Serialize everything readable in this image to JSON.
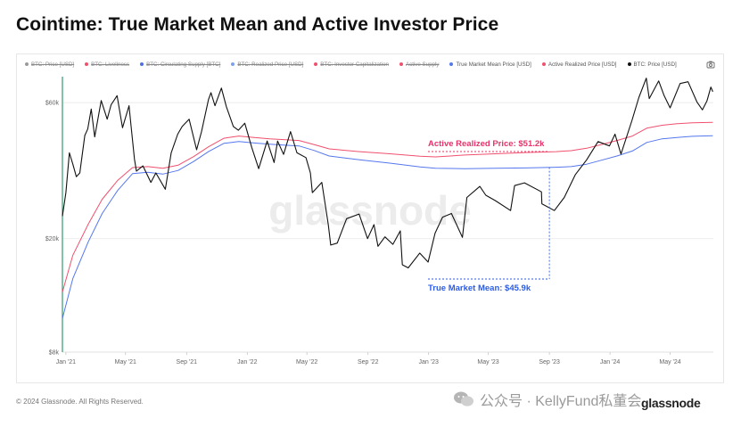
{
  "page": {
    "title": "Cointime: True Market Mean and Active Investor Price",
    "footer": "© 2024 Glassnode. All Rights Reserved.",
    "watermark": "glassnode",
    "wechat_text": "公众号 · KellyFund私董会",
    "brand": "glassnode"
  },
  "legend": [
    {
      "label": "BTC: Price [USD]",
      "color": "#9a9a9a",
      "active": false
    },
    {
      "label": "BTC: Liveliness",
      "color": "#f0506e",
      "active": false
    },
    {
      "label": "BTC: Circulating Supply [BTC]",
      "color": "#4f6fe0",
      "active": false
    },
    {
      "label": "BTC: Realized Price [USD]",
      "color": "#7ea0f0",
      "active": false
    },
    {
      "label": "BTC: Investor Capitalization",
      "color": "#f0506e",
      "active": false
    },
    {
      "label": "Active Supply",
      "color": "#f0506e",
      "active": false
    },
    {
      "label": "True Market Mean Price [USD]",
      "color": "#5577ee",
      "active": true
    },
    {
      "label": "Active Realized Price [USD]",
      "color": "#f0506e",
      "active": true
    },
    {
      "label": "BTC: Price [USD]",
      "color": "#111111",
      "active": true
    }
  ],
  "annotations": {
    "active_realized": "Active Realized Price: $51.2k",
    "true_market_mean": "True Market Mean: $45.9k"
  },
  "icons": {
    "camera": "camera-icon",
    "wechat": "wechat-icon"
  },
  "colors": {
    "price": "#111111",
    "active_realized": "#f0506e",
    "true_market_mean": "#5577ee",
    "grid": "#e6e6e6",
    "annotation_realized": "#e8336a",
    "annotation_mean": "#2b5ce6"
  },
  "chart_data": {
    "type": "line",
    "title": "Cointime: True Market Mean and Active Investor Price",
    "y_scale": "log",
    "ylim": [
      8000,
      74000
    ],
    "xlim": [
      "2020-12-25",
      "2024-07-27"
    ],
    "y_ticks": [
      {
        "value": 8000,
        "label": "$8k"
      },
      {
        "value": 20000,
        "label": "$20k"
      },
      {
        "value": 60000,
        "label": "$60k"
      }
    ],
    "x_ticks": [
      {
        "date": "2021-01-01",
        "label": "Jan '21"
      },
      {
        "date": "2021-05-01",
        "label": "May '21"
      },
      {
        "date": "2021-09-01",
        "label": "Sep '21"
      },
      {
        "date": "2022-01-01",
        "label": "Jan '22"
      },
      {
        "date": "2022-05-01",
        "label": "May '22"
      },
      {
        "date": "2022-09-01",
        "label": "Sep '22"
      },
      {
        "date": "2023-01-01",
        "label": "Jan '23"
      },
      {
        "date": "2023-05-01",
        "label": "May '23"
      },
      {
        "date": "2023-09-01",
        "label": "Sep '23"
      },
      {
        "date": "2024-01-01",
        "label": "Jan '24"
      },
      {
        "date": "2024-05-01",
        "label": "May '24"
      }
    ],
    "grid": true,
    "legend_position": "top",
    "series": [
      {
        "name": "BTC: Price [USD]",
        "color": "#111111",
        "points": [
          [
            "2020-12-25",
            24000
          ],
          [
            "2021-01-01",
            29000
          ],
          [
            "2021-01-08",
            40000
          ],
          [
            "2021-01-15",
            36500
          ],
          [
            "2021-01-22",
            33000
          ],
          [
            "2021-01-29",
            34000
          ],
          [
            "2021-02-08",
            46000
          ],
          [
            "2021-02-14",
            48500
          ],
          [
            "2021-02-21",
            57000
          ],
          [
            "2021-02-28",
            45500
          ],
          [
            "2021-03-13",
            61000
          ],
          [
            "2021-03-25",
            52500
          ],
          [
            "2021-04-02",
            59000
          ],
          [
            "2021-04-14",
            63500
          ],
          [
            "2021-04-25",
            49000
          ],
          [
            "2021-05-08",
            58500
          ],
          [
            "2021-05-12",
            50000
          ],
          [
            "2021-05-19",
            38000
          ],
          [
            "2021-05-23",
            34500
          ],
          [
            "2021-06-05",
            36000
          ],
          [
            "2021-06-21",
            31500
          ],
          [
            "2021-07-01",
            34000
          ],
          [
            "2021-07-20",
            29800
          ],
          [
            "2021-08-01",
            40000
          ],
          [
            "2021-08-14",
            46500
          ],
          [
            "2021-08-23",
            49500
          ],
          [
            "2021-09-06",
            52500
          ],
          [
            "2021-09-21",
            41000
          ],
          [
            "2021-10-01",
            47500
          ],
          [
            "2021-10-15",
            61500
          ],
          [
            "2021-10-20",
            65000
          ],
          [
            "2021-10-28",
            58500
          ],
          [
            "2021-11-10",
            67500
          ],
          [
            "2021-11-20",
            58000
          ],
          [
            "2021-12-04",
            49500
          ],
          [
            "2021-12-14",
            48000
          ],
          [
            "2021-12-27",
            50800
          ],
          [
            "2022-01-10",
            41800
          ],
          [
            "2022-01-24",
            35200
          ],
          [
            "2022-02-10",
            44000
          ],
          [
            "2022-02-24",
            37000
          ],
          [
            "2022-03-03",
            44000
          ],
          [
            "2022-03-15",
            39500
          ],
          [
            "2022-03-29",
            47500
          ],
          [
            "2022-04-11",
            40000
          ],
          [
            "2022-04-29",
            38500
          ],
          [
            "2022-05-08",
            34000
          ],
          [
            "2022-05-12",
            29000
          ],
          [
            "2022-05-31",
            31500
          ],
          [
            "2022-06-13",
            22500
          ],
          [
            "2022-06-18",
            19000
          ],
          [
            "2022-07-01",
            19300
          ],
          [
            "2022-07-20",
            23500
          ],
          [
            "2022-08-14",
            24400
          ],
          [
            "2022-08-31",
            20000
          ],
          [
            "2022-09-13",
            22400
          ],
          [
            "2022-09-21",
            18800
          ],
          [
            "2022-10-05",
            20300
          ],
          [
            "2022-10-21",
            19100
          ],
          [
            "2022-11-05",
            21300
          ],
          [
            "2022-11-09",
            16200
          ],
          [
            "2022-11-21",
            15800
          ],
          [
            "2022-12-14",
            17800
          ],
          [
            "2022-12-31",
            16550
          ],
          [
            "2023-01-14",
            20900
          ],
          [
            "2023-01-29",
            23800
          ],
          [
            "2023-02-16",
            24500
          ],
          [
            "2023-03-10",
            20200
          ],
          [
            "2023-03-19",
            27900
          ],
          [
            "2023-04-14",
            30500
          ],
          [
            "2023-04-26",
            28400
          ],
          [
            "2023-05-15",
            27200
          ],
          [
            "2023-06-15",
            25100
          ],
          [
            "2023-06-23",
            30700
          ],
          [
            "2023-07-13",
            31400
          ],
          [
            "2023-08-16",
            29200
          ],
          [
            "2023-08-17",
            26500
          ],
          [
            "2023-09-11",
            25100
          ],
          [
            "2023-10-01",
            27900
          ],
          [
            "2023-10-23",
            33500
          ],
          [
            "2023-11-15",
            37800
          ],
          [
            "2023-12-08",
            43800
          ],
          [
            "2023-12-31",
            42300
          ],
          [
            "2024-01-11",
            46500
          ],
          [
            "2024-01-23",
            39600
          ],
          [
            "2024-02-14",
            51800
          ],
          [
            "2024-02-28",
            62500
          ],
          [
            "2024-03-14",
            73100
          ],
          [
            "2024-03-20",
            62000
          ],
          [
            "2024-04-08",
            71500
          ],
          [
            "2024-04-19",
            63500
          ],
          [
            "2024-05-01",
            57500
          ],
          [
            "2024-05-21",
            70000
          ],
          [
            "2024-06-06",
            71000
          ],
          [
            "2024-06-24",
            60300
          ],
          [
            "2024-07-05",
            56600
          ],
          [
            "2024-07-14",
            60800
          ],
          [
            "2024-07-22",
            68000
          ],
          [
            "2024-07-26",
            65500
          ]
        ]
      },
      {
        "name": "Active Realized Price [USD]",
        "color": "#f0506e",
        "points": [
          [
            "2020-12-25",
            13000
          ],
          [
            "2021-01-15",
            17500
          ],
          [
            "2021-02-15",
            22500
          ],
          [
            "2021-03-15",
            27500
          ],
          [
            "2021-04-15",
            32000
          ],
          [
            "2021-05-15",
            35500
          ],
          [
            "2021-06-15",
            35800
          ],
          [
            "2021-07-15",
            35300
          ],
          [
            "2021-08-15",
            36200
          ],
          [
            "2021-09-15",
            38800
          ],
          [
            "2021-10-15",
            42000
          ],
          [
            "2021-11-15",
            45000
          ],
          [
            "2021-12-15",
            45800
          ],
          [
            "2022-01-15",
            45300
          ],
          [
            "2022-02-15",
            44800
          ],
          [
            "2022-03-15",
            44500
          ],
          [
            "2022-04-15",
            44200
          ],
          [
            "2022-05-15",
            42800
          ],
          [
            "2022-06-15",
            41300
          ],
          [
            "2022-08-15",
            40400
          ],
          [
            "2022-10-15",
            39700
          ],
          [
            "2022-12-15",
            38900
          ],
          [
            "2023-01-15",
            38700
          ],
          [
            "2023-03-15",
            39300
          ],
          [
            "2023-05-15",
            39700
          ],
          [
            "2023-07-15",
            40100
          ],
          [
            "2023-09-15",
            40400
          ],
          [
            "2023-10-15",
            40700
          ],
          [
            "2023-11-15",
            41500
          ],
          [
            "2023-12-15",
            42800
          ],
          [
            "2024-01-15",
            44200
          ],
          [
            "2024-02-15",
            45800
          ],
          [
            "2024-03-15",
            48800
          ],
          [
            "2024-04-15",
            50000
          ],
          [
            "2024-05-15",
            50600
          ],
          [
            "2024-06-15",
            51000
          ],
          [
            "2024-07-26",
            51200
          ]
        ]
      },
      {
        "name": "True Market Mean Price [USD]",
        "color": "#5577ee",
        "points": [
          [
            "2020-12-25",
            10500
          ],
          [
            "2021-01-15",
            14500
          ],
          [
            "2021-02-15",
            19500
          ],
          [
            "2021-03-15",
            24500
          ],
          [
            "2021-04-15",
            29500
          ],
          [
            "2021-05-15",
            33800
          ],
          [
            "2021-06-15",
            34200
          ],
          [
            "2021-07-15",
            33700
          ],
          [
            "2021-08-15",
            34700
          ],
          [
            "2021-09-15",
            37300
          ],
          [
            "2021-10-15",
            40400
          ],
          [
            "2021-11-15",
            43200
          ],
          [
            "2021-12-15",
            43800
          ],
          [
            "2022-01-15",
            43300
          ],
          [
            "2022-02-15",
            42900
          ],
          [
            "2022-03-15",
            42600
          ],
          [
            "2022-04-15",
            42300
          ],
          [
            "2022-05-15",
            40800
          ],
          [
            "2022-06-15",
            39000
          ],
          [
            "2022-08-15",
            37800
          ],
          [
            "2022-10-15",
            36800
          ],
          [
            "2022-12-15",
            35700
          ],
          [
            "2023-01-15",
            35300
          ],
          [
            "2023-03-15",
            35200
          ],
          [
            "2023-05-15",
            35300
          ],
          [
            "2023-07-15",
            35400
          ],
          [
            "2023-09-15",
            35600
          ],
          [
            "2023-10-15",
            35800
          ],
          [
            "2023-11-15",
            36500
          ],
          [
            "2023-12-15",
            37700
          ],
          [
            "2024-01-15",
            39000
          ],
          [
            "2024-02-15",
            40600
          ],
          [
            "2024-03-15",
            43500
          ],
          [
            "2024-04-15",
            44800
          ],
          [
            "2024-05-15",
            45300
          ],
          [
            "2024-06-15",
            45700
          ],
          [
            "2024-07-26",
            45900
          ]
        ]
      }
    ],
    "annotations": [
      {
        "text": "Active Realized Price: $51.2k",
        "series": "Active Realized Price [USD]",
        "date": "2023-09-01"
      },
      {
        "text": "True Market Mean: $45.9k",
        "series": "True Market Mean Price [USD]",
        "date": "2023-09-01"
      }
    ]
  }
}
